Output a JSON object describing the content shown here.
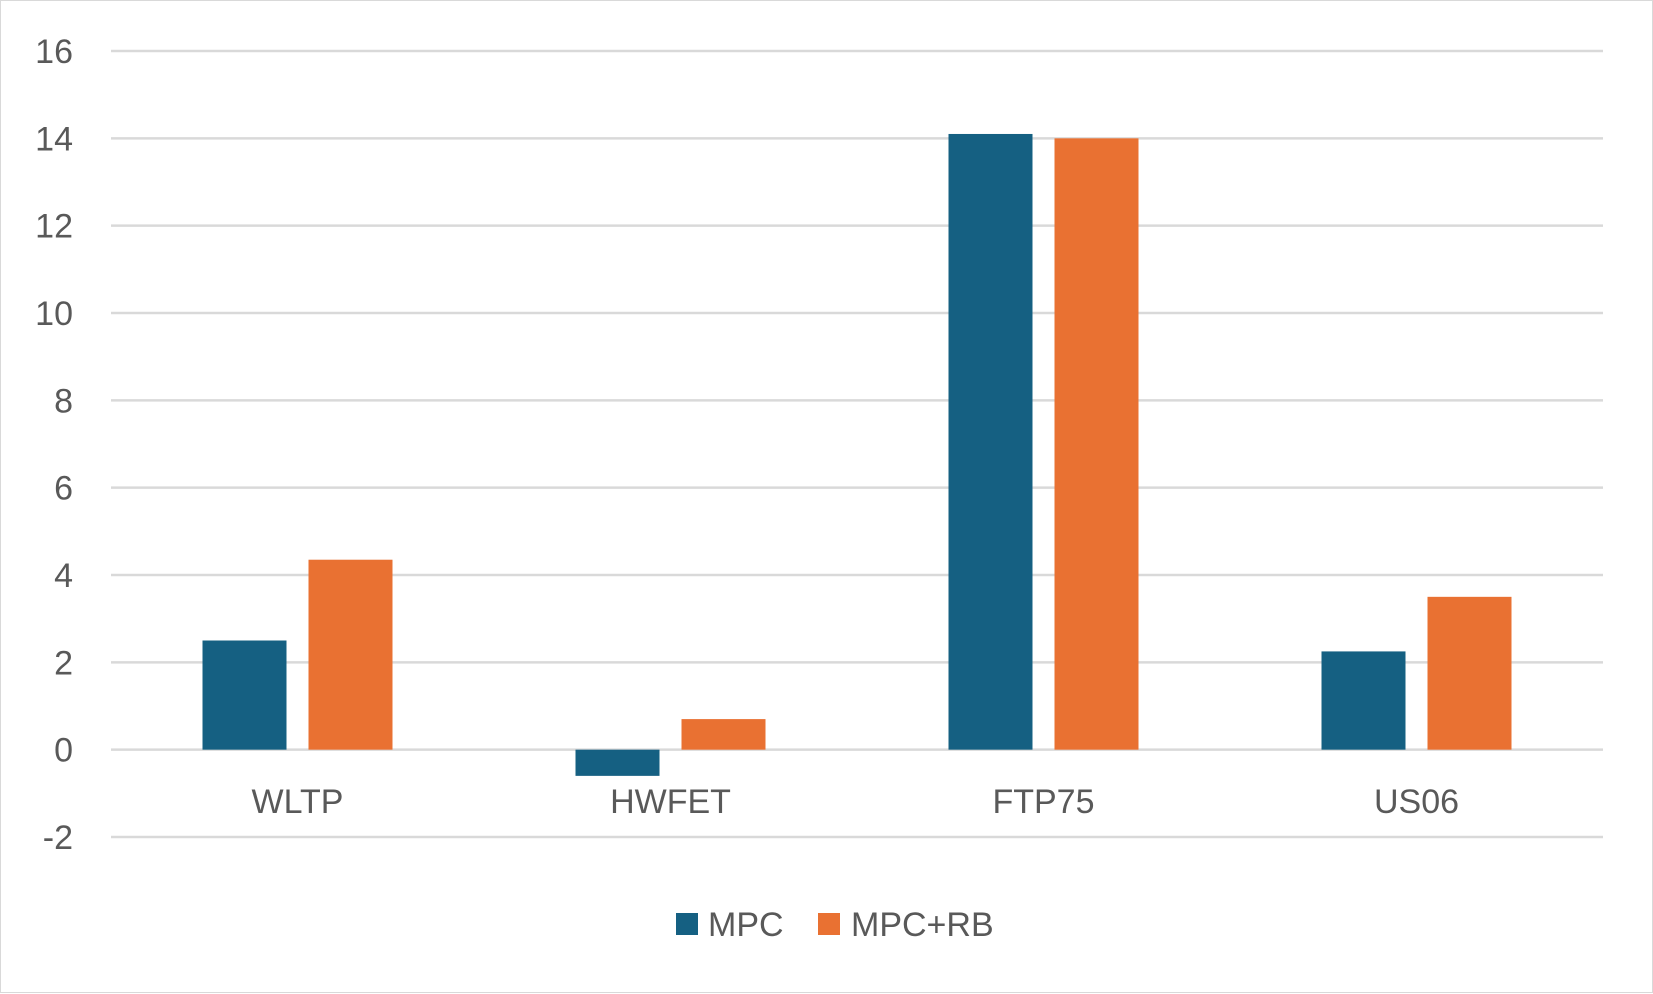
{
  "chart_data": {
    "type": "bar",
    "categories": [
      "WLTP",
      "HWFET",
      "FTP75",
      "US06"
    ],
    "series": [
      {
        "name": "MPC",
        "color": "#156082",
        "values": [
          2.5,
          -0.6,
          14.1,
          2.25
        ]
      },
      {
        "name": "MPC+RB",
        "color": "#E97132",
        "values": [
          4.35,
          0.7,
          14.0,
          3.5
        ]
      }
    ],
    "title": "",
    "xlabel": "",
    "ylabel": "",
    "ylim": [
      -2,
      16
    ],
    "yticks": [
      -2,
      0,
      2,
      4,
      6,
      8,
      10,
      12,
      14,
      16
    ],
    "ytick_labels": [
      "-2",
      "0",
      "2",
      "4",
      "6",
      "8",
      "10",
      "12",
      "14",
      "16"
    ],
    "grid": true,
    "legend": "bottom"
  }
}
